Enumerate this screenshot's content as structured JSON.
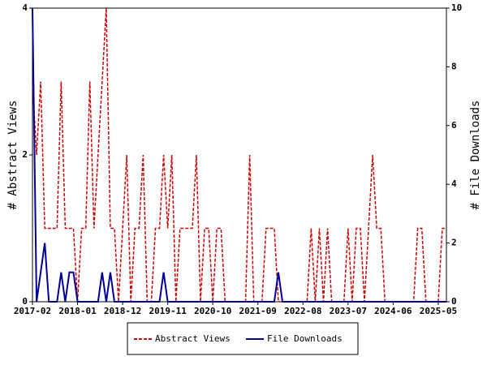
{
  "chart_data": {
    "type": "line",
    "x": [
      "2017-02",
      "2017-03",
      "2017-04",
      "2017-05",
      "2017-06",
      "2017-07",
      "2017-08",
      "2017-09",
      "2017-10",
      "2017-11",
      "2017-12",
      "2018-01",
      "2018-02",
      "2018-03",
      "2018-04",
      "2018-05",
      "2018-06",
      "2018-07",
      "2018-08",
      "2018-09",
      "2018-10",
      "2018-11",
      "2018-12",
      "2019-01",
      "2019-02",
      "2019-03",
      "2019-04",
      "2019-05",
      "2019-06",
      "2019-07",
      "2019-08",
      "2019-09",
      "2019-10",
      "2019-11",
      "2019-12",
      "2020-01",
      "2020-02",
      "2020-03",
      "2020-04",
      "2020-05",
      "2020-06",
      "2020-07",
      "2020-08",
      "2020-09",
      "2020-10",
      "2020-11",
      "2020-12",
      "2021-01",
      "2021-02",
      "2021-03",
      "2021-04",
      "2021-05",
      "2021-06",
      "2021-07",
      "2021-08",
      "2021-09",
      "2021-10",
      "2021-11",
      "2021-12",
      "2022-01",
      "2022-02",
      "2022-03",
      "2022-04",
      "2022-05",
      "2022-06",
      "2022-07",
      "2022-08",
      "2022-09",
      "2022-10",
      "2022-11",
      "2022-12",
      "2023-01",
      "2023-02",
      "2023-03",
      "2023-04",
      "2023-05",
      "2023-06",
      "2023-07",
      "2023-08",
      "2023-09",
      "2023-10",
      "2023-11",
      "2023-12",
      "2024-01",
      "2024-02",
      "2024-03",
      "2024-04",
      "2024-05",
      "2024-06",
      "2024-07",
      "2024-08",
      "2024-09",
      "2024-10",
      "2024-11",
      "2024-12",
      "2025-01",
      "2025-02",
      "2025-03",
      "2025-04",
      "2025-05",
      "2025-06",
      "2025-07"
    ],
    "xticks": [
      "2017-02",
      "2018-01",
      "2018-12",
      "2019-11",
      "2020-10",
      "2021-09",
      "2022-08",
      "2023-07",
      "2024-06",
      "2025-05"
    ],
    "ylabel": "# Abstract Views",
    "y2label": "# File Downloads",
    "ylim": [
      0,
      4
    ],
    "yticks": [
      0,
      2,
      4
    ],
    "y2lim": [
      0,
      10
    ],
    "y2ticks": [
      0,
      2,
      4,
      6,
      8,
      10
    ],
    "series": [
      {
        "name": "Abstract Views",
        "color": "#cc0000",
        "dash": true,
        "axis": "y",
        "values": [
          3,
          2,
          3,
          1,
          1,
          1,
          1,
          3,
          1,
          1,
          1,
          0,
          1,
          1,
          3,
          1,
          2,
          3,
          4,
          1,
          1,
          0,
          1,
          2,
          0,
          1,
          1,
          2,
          0,
          0,
          1,
          1,
          2,
          1,
          2,
          0,
          1,
          1,
          1,
          1,
          2,
          0,
          1,
          1,
          0,
          1,
          1,
          0,
          0,
          0,
          0,
          0,
          0,
          2,
          0,
          0,
          0,
          1,
          1,
          1,
          0,
          0,
          0,
          0,
          0,
          0,
          0,
          0,
          1,
          0,
          1,
          0,
          1,
          0,
          0,
          0,
          0,
          1,
          0,
          1,
          1,
          0,
          1,
          2,
          1,
          1,
          0,
          0,
          0,
          0,
          0,
          0,
          0,
          0,
          1,
          1,
          0,
          0,
          0,
          0,
          1,
          1
        ]
      },
      {
        "name": "File Downloads",
        "color": "#000099",
        "dash": false,
        "axis": "y2",
        "values": [
          10,
          0,
          1,
          2,
          0,
          0,
          0,
          1,
          0,
          1,
          1,
          0,
          0,
          0,
          0,
          0,
          0,
          1,
          0,
          1,
          0,
          0,
          0,
          0,
          0,
          0,
          0,
          0,
          0,
          0,
          0,
          0,
          1,
          0,
          0,
          0,
          0,
          0,
          0,
          0,
          0,
          0,
          0,
          0,
          0,
          0,
          0,
          0,
          0,
          0,
          0,
          0,
          0,
          0,
          0,
          0,
          0,
          0,
          0,
          0,
          1,
          0,
          0,
          0,
          0,
          0,
          0,
          0,
          0,
          0,
          0,
          0,
          0,
          0,
          0,
          0,
          0,
          0,
          0,
          0,
          0,
          0,
          0,
          0,
          0,
          0,
          0,
          0,
          0,
          0,
          0,
          0,
          0,
          0,
          0,
          0,
          0,
          0,
          0,
          0,
          0,
          0
        ]
      }
    ]
  }
}
